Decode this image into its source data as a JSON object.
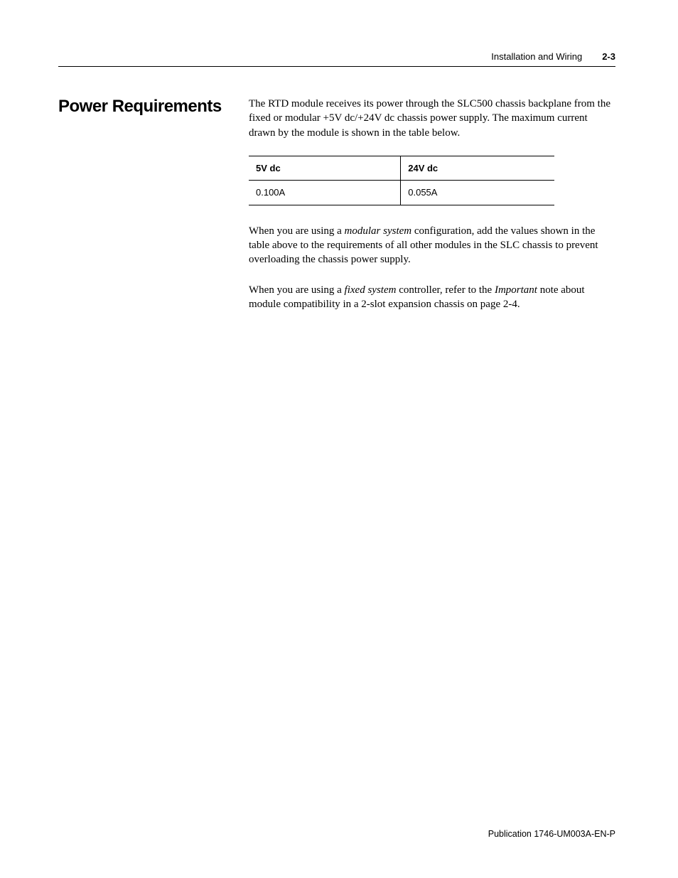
{
  "header": {
    "title": "Installation and Wiring",
    "page_number": "2-3"
  },
  "section": {
    "heading": "Power Requirements",
    "para_intro": "The RTD module receives its power through the SLC500 chassis backplane from the fixed or modular +5V dc/+24V dc chassis power supply. The maximum current drawn by the module is shown in the table below.",
    "table": {
      "columns": [
        "5V dc",
        "24V dc"
      ],
      "rows": [
        [
          "0.100A",
          "0.055A"
        ]
      ]
    },
    "para_modular_pre": "When you are using a ",
    "para_modular_em": "modular system",
    "para_modular_post": " configuration, add the values shown in the table above to the requirements of all other modules in the SLC chassis to prevent overloading the chassis power supply.",
    "para_fixed_pre": "When you are using a ",
    "para_fixed_em1": "fixed system",
    "para_fixed_mid": " controller, refer to the ",
    "para_fixed_em2": "Important",
    "para_fixed_post": " note about module compatibility in a 2-slot expansion chassis on page 2-4."
  },
  "footer": {
    "publication": "Publication 1746-UM003A-EN-P"
  },
  "style": {
    "page_bg": "#ffffff",
    "text_color": "#000000",
    "rule_color": "#000000",
    "heading_font": "Arial",
    "body_font": "Georgia",
    "heading_size_pt": 18,
    "body_size_pt": 11,
    "table_size_pt": 10,
    "header_size_pt": 10,
    "footer_size_pt": 9
  }
}
